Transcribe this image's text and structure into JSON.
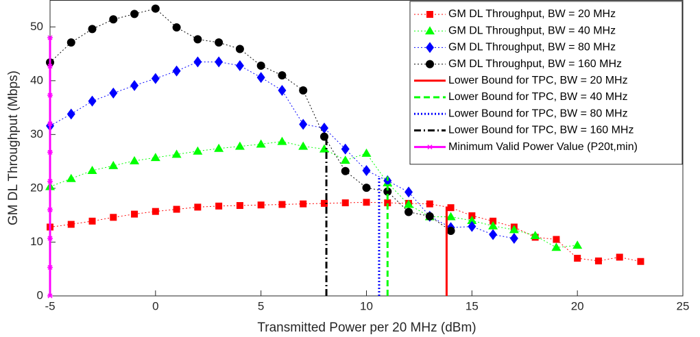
{
  "chart_data": {
    "type": "line",
    "xlabel": "Transmitted Power per 20 MHz (dBm)",
    "ylabel": "GM DL Throughput (Mbps)",
    "xlim": [
      -5,
      25
    ],
    "ylim": [
      0,
      55
    ],
    "xticks": [
      -5,
      0,
      5,
      10,
      15,
      20,
      25
    ],
    "yticks": [
      0,
      10,
      20,
      30,
      40,
      50
    ],
    "legend": "upper right",
    "series": [
      {
        "name": "GM DL Throughput, BW = 20 MHz",
        "color": "#ff0000",
        "marker": "square",
        "line_style": "dotted",
        "x": [
          -5,
          -4,
          -3,
          -2,
          -1,
          0,
          1,
          2,
          3,
          4,
          5,
          6,
          7,
          8,
          9,
          10,
          11,
          12,
          13,
          14,
          15,
          16,
          17,
          18,
          19,
          20,
          21,
          22,
          23
        ],
        "values": [
          12.8,
          13.3,
          13.9,
          14.6,
          15.2,
          15.7,
          16.1,
          16.5,
          16.7,
          16.8,
          16.9,
          17.0,
          17.1,
          17.2,
          17.3,
          17.4,
          17.3,
          17.2,
          17.1,
          16.4,
          14.9,
          13.9,
          12.8,
          10.9,
          10.5,
          7.0,
          6.5,
          7.2,
          6.4
        ]
      },
      {
        "name": "GM DL Throughput, BW = 40 MHz",
        "color": "#00ff00",
        "marker": "triangle",
        "line_style": "dotted",
        "x": [
          -5,
          -4,
          -3,
          -2,
          -1,
          0,
          1,
          2,
          3,
          4,
          5,
          6,
          7,
          8,
          9,
          10,
          11,
          12,
          13,
          14,
          15,
          16,
          17,
          18,
          19,
          20
        ],
        "values": [
          20.3,
          21.8,
          23.3,
          24.2,
          25.1,
          25.7,
          26.3,
          26.9,
          27.4,
          27.8,
          28.2,
          28.7,
          27.8,
          27.3,
          25.2,
          26.5,
          21.0,
          17.0,
          14.7,
          14.7,
          14.0,
          13.0,
          12.3,
          11.2,
          9.0,
          9.4
        ]
      },
      {
        "name": "GM DL Throughput, BW = 80 MHz",
        "color": "#0000ff",
        "marker": "diamond",
        "line_style": "dotted",
        "x": [
          -5,
          -4,
          -3,
          -2,
          -1,
          0,
          1,
          2,
          3,
          4,
          5,
          6,
          7,
          8,
          9,
          10,
          11,
          12,
          13,
          14,
          15,
          16,
          17
        ],
        "values": [
          31.6,
          33.8,
          36.2,
          37.7,
          39.1,
          40.4,
          41.8,
          43.5,
          43.5,
          42.8,
          40.6,
          38.2,
          31.9,
          31.2,
          27.3,
          23.3,
          21.4,
          19.3,
          14.8,
          12.7,
          12.9,
          11.4,
          10.7
        ]
      },
      {
        "name": "GM DL Throughput, BW = 160 MHz",
        "color": "#000000",
        "marker": "circle",
        "line_style": "dotted",
        "x": [
          -5,
          -4,
          -3,
          -2,
          -1,
          0,
          1,
          2,
          3,
          4,
          5,
          6,
          7,
          8,
          9,
          10,
          11,
          12,
          13,
          14
        ],
        "values": [
          43.4,
          47.1,
          49.6,
          51.4,
          52.4,
          53.4,
          49.9,
          47.7,
          47.1,
          45.9,
          42.8,
          41.0,
          38.2,
          29.6,
          23.2,
          20.1,
          19.4,
          15.6,
          14.8,
          12.1
        ]
      },
      {
        "name": "Lower Bound for TPC, BW = 20 MHz",
        "color": "#ff0000",
        "line_style": "solid",
        "x": [
          13.8,
          13.8
        ],
        "values": [
          0,
          16.6
        ]
      },
      {
        "name": "Lower Bound for TPC, BW = 40 MHz",
        "color": "#00ff00",
        "line_style": "dashed",
        "x": [
          11.0,
          11.0
        ],
        "values": [
          0,
          22.2
        ]
      },
      {
        "name": "Lower Bound for TPC, BW = 80 MHz",
        "color": "#0000ff",
        "line_style": "dotted",
        "x": [
          10.6,
          10.6
        ],
        "values": [
          0,
          22.0
        ]
      },
      {
        "name": "Lower Bound for TPC, BW = 160 MHz",
        "color": "#000000",
        "line_style": "dashdot",
        "x": [
          8.1,
          8.1
        ],
        "values": [
          0,
          30.0
        ]
      },
      {
        "name": "Minimum Valid Power Value (P20t,min)",
        "color": "#ff00ff",
        "marker": "star",
        "line_style": "solid",
        "x": [
          -5,
          -5,
          -5,
          -5,
          -5,
          -5,
          -5,
          -5,
          -5,
          -5
        ],
        "values": [
          0,
          5.3,
          10.7,
          16.0,
          21.3,
          26.7,
          32.0,
          37.3,
          42.7,
          48.0
        ]
      }
    ]
  }
}
